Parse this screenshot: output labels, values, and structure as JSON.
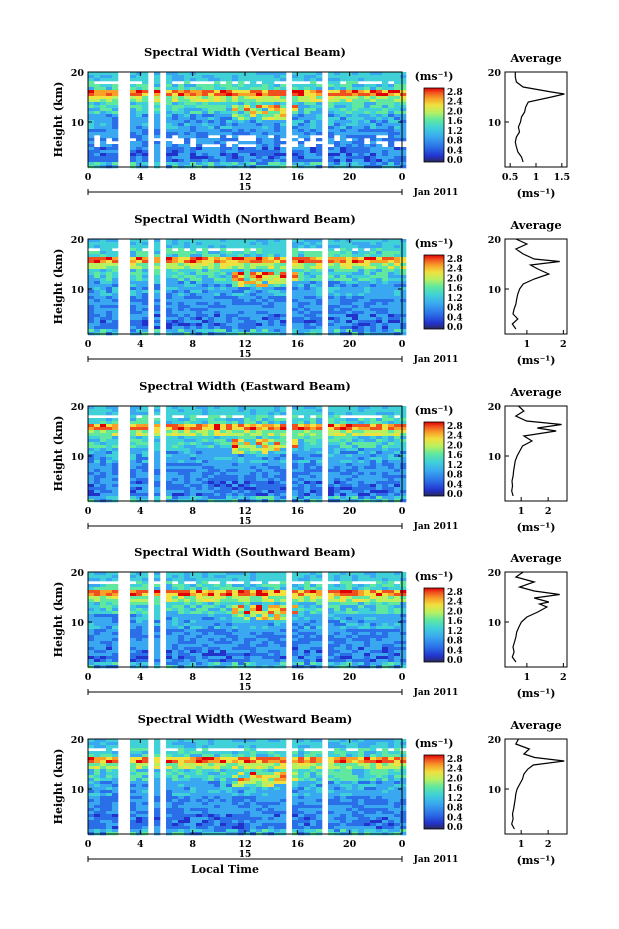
{
  "chart_data": [
    {
      "type": "heatmap",
      "title": "Spectral Width (Vertical Beam)",
      "ylabel": "Height (km)",
      "x_ticks": [
        "0",
        "4",
        "8",
        "12",
        "16",
        "20",
        "0"
      ],
      "y_ticks": [
        "20",
        "10"
      ],
      "date_label": "15",
      "month_label": "Jan 2011",
      "xlim": [
        0,
        24
      ],
      "ylim": [
        1,
        20
      ],
      "colorbar": {
        "unit": "(ms⁻¹)",
        "ticks": [
          "2.8",
          "2.4",
          "2.0",
          "1.6",
          "1.2",
          "0.8",
          "0.4",
          "0.0"
        ]
      },
      "average": {
        "title": "Average",
        "ylabel": "(ms⁻¹)",
        "x_ticks": [
          "0.5",
          "1",
          "1.5"
        ],
        "y_ticks": [
          "20",
          "10"
        ],
        "xlim": [
          0.4,
          1.6
        ],
        "profile": [
          [
            0.75,
            2
          ],
          [
            0.72,
            3
          ],
          [
            0.65,
            4
          ],
          [
            0.62,
            5
          ],
          [
            0.6,
            6
          ],
          [
            0.62,
            7
          ],
          [
            0.68,
            8
          ],
          [
            0.66,
            9
          ],
          [
            0.7,
            10
          ],
          [
            0.72,
            11
          ],
          [
            0.78,
            12
          ],
          [
            0.8,
            13
          ],
          [
            0.85,
            14
          ],
          [
            1.3,
            15
          ],
          [
            1.55,
            15.6
          ],
          [
            1.3,
            16
          ],
          [
            0.75,
            17
          ],
          [
            0.62,
            18
          ],
          [
            0.6,
            19
          ],
          [
            0.6,
            20
          ]
        ]
      }
    },
    {
      "type": "heatmap",
      "title": "Spectral Width (Northward Beam)",
      "ylabel": "Height (km)",
      "x_ticks": [
        "0",
        "4",
        "8",
        "12",
        "16",
        "20",
        "0"
      ],
      "y_ticks": [
        "20",
        "10"
      ],
      "date_label": "15",
      "month_label": "Jan 2011",
      "xlim": [
        0,
        24
      ],
      "ylim": [
        1,
        20
      ],
      "colorbar": {
        "unit": "(ms⁻¹)",
        "ticks": [
          "2.8",
          "2.4",
          "2.0",
          "1.6",
          "1.2",
          "0.8",
          "0.4",
          "0.0"
        ]
      },
      "average": {
        "title": "Average",
        "ylabel": "(ms⁻¹)",
        "x_ticks": [
          "1",
          "2"
        ],
        "y_ticks": [
          "20",
          "10"
        ],
        "xlim": [
          0.4,
          2.1
        ],
        "profile": [
          [
            0.7,
            2
          ],
          [
            0.6,
            3
          ],
          [
            0.75,
            4
          ],
          [
            0.62,
            5
          ],
          [
            0.65,
            6
          ],
          [
            0.7,
            7
          ],
          [
            0.72,
            8
          ],
          [
            0.75,
            9
          ],
          [
            0.8,
            10
          ],
          [
            0.9,
            11
          ],
          [
            1.2,
            12
          ],
          [
            1.6,
            13
          ],
          [
            1.3,
            14
          ],
          [
            1.1,
            14.8
          ],
          [
            1.9,
            15.5
          ],
          [
            1.2,
            16
          ],
          [
            0.9,
            17
          ],
          [
            0.7,
            18
          ],
          [
            1.0,
            19
          ],
          [
            0.7,
            20
          ]
        ]
      }
    },
    {
      "type": "heatmap",
      "title": "Spectral Width (Eastward Beam)",
      "ylabel": "Height (km)",
      "x_ticks": [
        "0",
        "4",
        "8",
        "12",
        "16",
        "20",
        "0"
      ],
      "y_ticks": [
        "20",
        "10"
      ],
      "date_label": "15",
      "month_label": "Jan 2011",
      "xlim": [
        0,
        24
      ],
      "ylim": [
        1,
        20
      ],
      "colorbar": {
        "unit": "(ms⁻¹)",
        "ticks": [
          "2.8",
          "2.4",
          "2.0",
          "1.6",
          "1.2",
          "0.8",
          "0.4",
          "0.0"
        ]
      },
      "average": {
        "title": "Average",
        "ylabel": "(ms⁻¹)",
        "x_ticks": [
          "1",
          "2"
        ],
        "y_ticks": [
          "20",
          "10"
        ],
        "xlim": [
          0.4,
          2.7
        ],
        "profile": [
          [
            0.7,
            2
          ],
          [
            0.65,
            3
          ],
          [
            0.68,
            4
          ],
          [
            0.66,
            5
          ],
          [
            0.7,
            6
          ],
          [
            0.72,
            7
          ],
          [
            0.75,
            8
          ],
          [
            0.78,
            9
          ],
          [
            0.85,
            10
          ],
          [
            0.95,
            11
          ],
          [
            1.05,
            12
          ],
          [
            1.4,
            13
          ],
          [
            1.1,
            14
          ],
          [
            2.3,
            15
          ],
          [
            1.6,
            15.6
          ],
          [
            2.5,
            16.3
          ],
          [
            1.2,
            17
          ],
          [
            0.8,
            18
          ],
          [
            1.1,
            19
          ],
          [
            0.9,
            20
          ]
        ]
      }
    },
    {
      "type": "heatmap",
      "title": "Spectral Width (Southward Beam)",
      "ylabel": "Height (km)",
      "x_ticks": [
        "0",
        "4",
        "8",
        "12",
        "16",
        "20",
        "0"
      ],
      "y_ticks": [
        "20",
        "10"
      ],
      "date_label": "15",
      "month_label": "Jan 2011",
      "xlim": [
        0,
        24
      ],
      "ylim": [
        1,
        20
      ],
      "colorbar": {
        "unit": "(ms⁻¹)",
        "ticks": [
          "2.8",
          "2.4",
          "2.0",
          "1.6",
          "1.2",
          "0.8",
          "0.4",
          "0.0"
        ]
      },
      "average": {
        "title": "Average",
        "ylabel": "(ms⁻¹)",
        "x_ticks": [
          "1",
          "2"
        ],
        "y_ticks": [
          "20",
          "10"
        ],
        "xlim": [
          0.4,
          2.1
        ],
        "profile": [
          [
            0.7,
            2
          ],
          [
            0.6,
            3
          ],
          [
            0.65,
            4
          ],
          [
            0.62,
            5
          ],
          [
            0.66,
            6
          ],
          [
            0.7,
            7
          ],
          [
            0.72,
            8
          ],
          [
            0.78,
            9
          ],
          [
            0.85,
            10
          ],
          [
            1.0,
            11
          ],
          [
            1.3,
            12
          ],
          [
            1.55,
            13
          ],
          [
            1.35,
            13.6
          ],
          [
            1.6,
            14
          ],
          [
            1.2,
            14.8
          ],
          [
            1.9,
            15.5
          ],
          [
            1.2,
            16.2
          ],
          [
            0.8,
            17
          ],
          [
            1.2,
            18
          ],
          [
            0.7,
            19
          ],
          [
            0.9,
            20
          ]
        ]
      }
    },
    {
      "type": "heatmap",
      "title": "Spectral Width (Westward Beam)",
      "ylabel": "Height (km)",
      "x_ticks": [
        "0",
        "4",
        "8",
        "12",
        "16",
        "20",
        "0"
      ],
      "y_ticks": [
        "20",
        "10"
      ],
      "date_label": "15",
      "month_label": "Jan 2011",
      "xlabel": "Local Time",
      "xlim": [
        0,
        24
      ],
      "ylim": [
        1,
        20
      ],
      "colorbar": {
        "unit": "(ms⁻¹)",
        "ticks": [
          "2.8",
          "2.4",
          "2.0",
          "1.6",
          "1.2",
          "0.8",
          "0.4",
          "0.0"
        ]
      },
      "average": {
        "title": "Average",
        "ylabel": "(ms⁻¹)",
        "x_ticks": [
          "1",
          "2"
        ],
        "y_ticks": [
          "20",
          "10"
        ],
        "xlim": [
          0.4,
          2.7
        ],
        "profile": [
          [
            0.75,
            2
          ],
          [
            0.65,
            3
          ],
          [
            0.7,
            4
          ],
          [
            0.68,
            5
          ],
          [
            0.72,
            6
          ],
          [
            0.75,
            7
          ],
          [
            0.78,
            8
          ],
          [
            0.8,
            9
          ],
          [
            0.85,
            10
          ],
          [
            0.95,
            11
          ],
          [
            1.05,
            12
          ],
          [
            1.1,
            13
          ],
          [
            1.25,
            14
          ],
          [
            1.45,
            14.8
          ],
          [
            2.6,
            15.6
          ],
          [
            1.5,
            16.3
          ],
          [
            1.1,
            17
          ],
          [
            1.3,
            18
          ],
          [
            0.8,
            19
          ],
          [
            0.9,
            20
          ]
        ]
      }
    }
  ],
  "colors": {
    "scale": [
      "#2a2a5a",
      "#2233cc",
      "#2b6fe8",
      "#3aa8f0",
      "#40d0d8",
      "#60e8a0",
      "#b8f060",
      "#f0e040",
      "#f8a028",
      "#f05020",
      "#e00000"
    ]
  }
}
